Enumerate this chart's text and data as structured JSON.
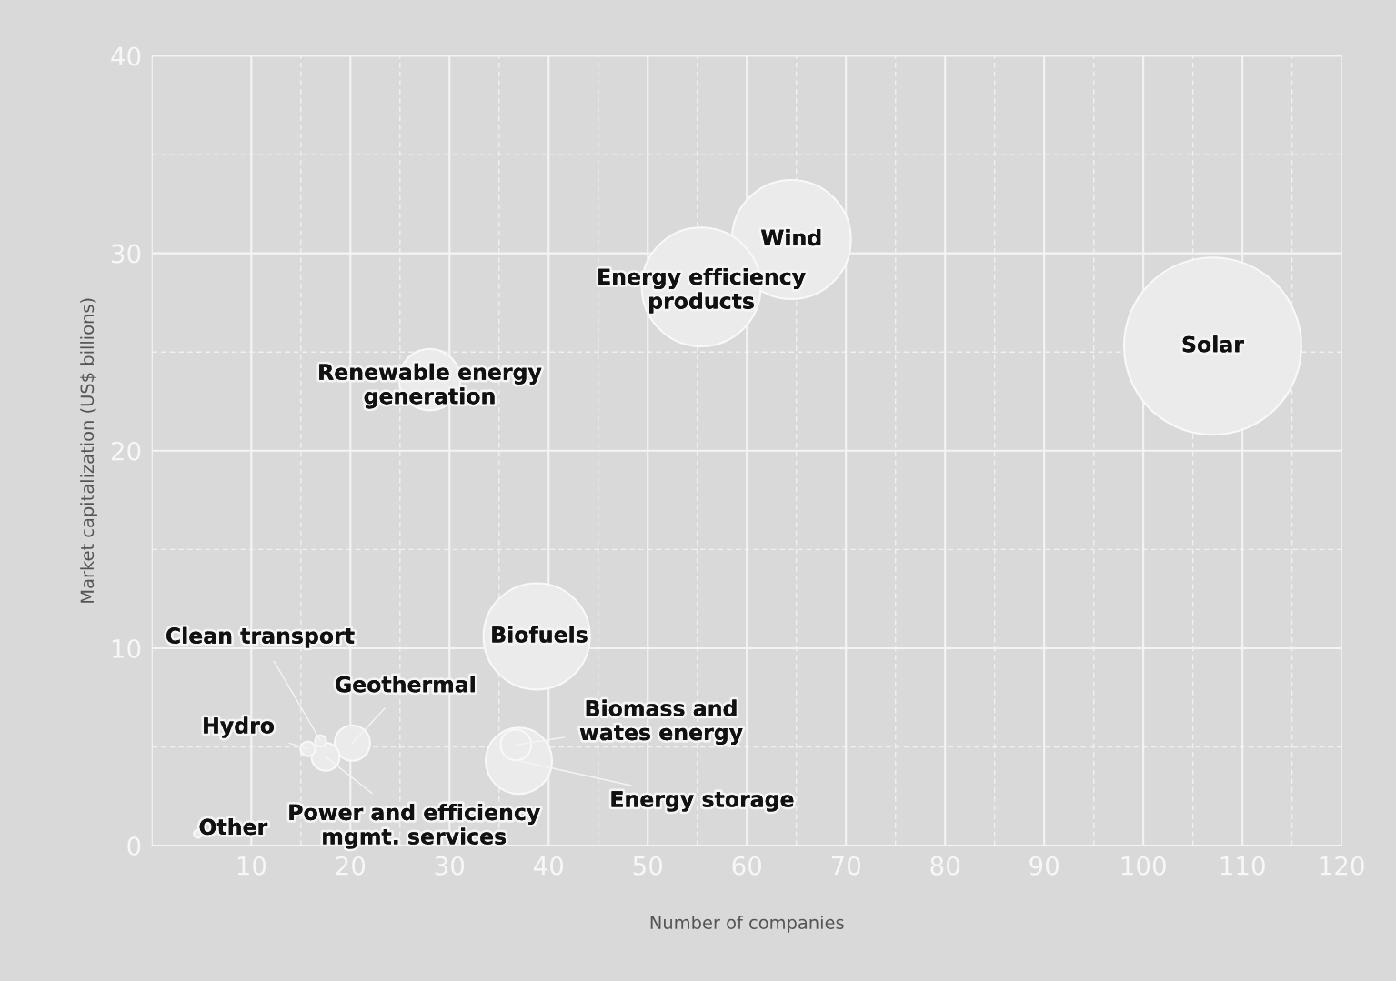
{
  "chart_data": {
    "type": "bubble",
    "xlabel": "Number of companies",
    "ylabel": "Market capitalization (US$ billions)",
    "xlim": [
      0,
      120
    ],
    "xticks": [
      10,
      20,
      30,
      40,
      50,
      60,
      70,
      80,
      90,
      100,
      110,
      120
    ],
    "ylim": [
      0,
      40
    ],
    "yticks": [
      0,
      10,
      20,
      30,
      40
    ],
    "grid": true,
    "series": [
      {
        "name": "Solar",
        "color": "#ebebeb",
        "x": [
          107
        ],
        "values": [
          25.3
        ],
        "sizes": [
          1
        ]
      },
      {
        "name": "Wind",
        "color": "#ebebeb",
        "x": [
          64.5
        ],
        "values": [
          30.7
        ],
        "sizes": [
          0.45
        ]
      },
      {
        "name": "Energy efficiency\nproducts",
        "color": "#ebebeb",
        "x": [
          55.4
        ],
        "values": [
          28.3
        ],
        "sizes": [
          0.45
        ]
      },
      {
        "name": "Renewable energy\ngeneration",
        "color": "#ebebeb",
        "x": [
          28
        ],
        "values": [
          23.6
        ],
        "sizes": [
          0.12
        ]
      },
      {
        "name": "Biofuels",
        "color": "#ebebeb",
        "x": [
          38.8
        ],
        "values": [
          10.6
        ],
        "sizes": [
          0.36
        ]
      },
      {
        "name": "Biomass and\nwates energy",
        "color": "#ebebeb",
        "x": [
          36.7
        ],
        "values": [
          5.1
        ],
        "sizes": [
          0.03
        ]
      },
      {
        "name": "Energy storage",
        "color": "#ebebeb",
        "x": [
          37
        ],
        "values": [
          4.3
        ],
        "sizes": [
          0.14
        ]
      },
      {
        "name": "Geothermal",
        "color": "#ebebeb",
        "x": [
          20.2
        ],
        "values": [
          5.2
        ],
        "sizes": [
          0.04
        ]
      },
      {
        "name": "Power and efficiency\nmgmt. services",
        "color": "#ebebeb",
        "x": [
          17.5
        ],
        "values": [
          4.5
        ],
        "sizes": [
          0.025
        ]
      },
      {
        "name": "Clean transport",
        "color": "#ebebeb",
        "x": [
          17
        ],
        "values": [
          5.3
        ],
        "sizes": [
          0.004
        ]
      },
      {
        "name": "Hydro",
        "color": "#ebebeb",
        "x": [
          15.7
        ],
        "values": [
          4.9
        ],
        "sizes": [
          0.007
        ]
      },
      {
        "name": "Other",
        "color": "#ebebeb",
        "x": [
          4.6
        ],
        "values": [
          0.6
        ],
        "sizes": [
          0.002
        ]
      }
    ]
  }
}
